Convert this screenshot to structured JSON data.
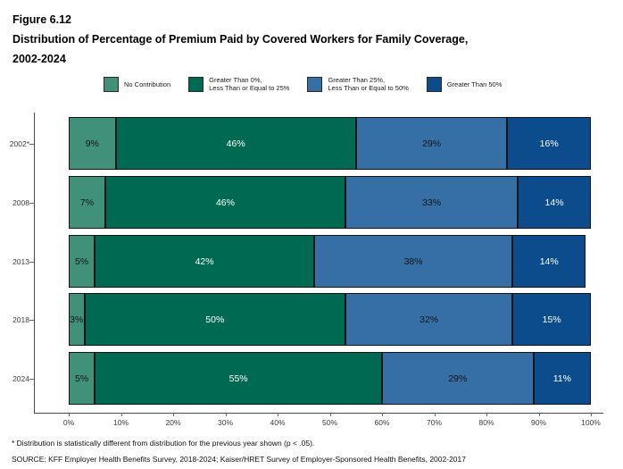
{
  "figure": {
    "label": "Figure 6.12",
    "title_line1": "Distribution of Percentage of Premium Paid by Covered Workers for Family Coverage,",
    "title_line2": "2002-2024"
  },
  "chart_data": {
    "type": "bar",
    "orientation": "horizontal",
    "stacked": true,
    "title": "Distribution of Percentage of Premium Paid by Covered Workers for Family Coverage, 2002-2024",
    "categories": [
      "2002*",
      "2008",
      "2013",
      "2018",
      "2024"
    ],
    "series": [
      {
        "name": "No Contribution",
        "color": "#41917A",
        "label_color": "#141414",
        "values": [
          9,
          7,
          5,
          3,
          5
        ]
      },
      {
        "name": "Greater Than 0%,\nLess Than or Equal to 25%",
        "color": "#006951",
        "label_color": "#ffffff",
        "values": [
          46,
          46,
          42,
          50,
          55
        ]
      },
      {
        "name": "Greater Than 25%,\nLess Than or Equal to 50%",
        "color": "#356FA5",
        "label_color": "#141414",
        "values": [
          29,
          33,
          38,
          32,
          29
        ]
      },
      {
        "name": "Greater Than 50%",
        "color": "#0D4C8C",
        "label_color": "#ffffff",
        "values": [
          16,
          14,
          14,
          15,
          11
        ]
      }
    ],
    "value_suffix": "%",
    "x_axis": {
      "min": 0,
      "max": 100,
      "tick_labels": [
        "0%",
        "10%",
        "20%",
        "30%",
        "40%",
        "50%",
        "60%",
        "70%",
        "80%",
        "90%",
        "100%"
      ]
    },
    "legend_position": "top",
    "grid": false
  },
  "footnotes": {
    "note": "* Distribution is statistically different from distribution for the previous year shown (p < .05).",
    "source": "SOURCE: KFF Employer Health Benefits Survey, 2018-2024; Kaiser/HRET Survey of Employer-Sponsored Health Benefits, 2002-2017"
  }
}
